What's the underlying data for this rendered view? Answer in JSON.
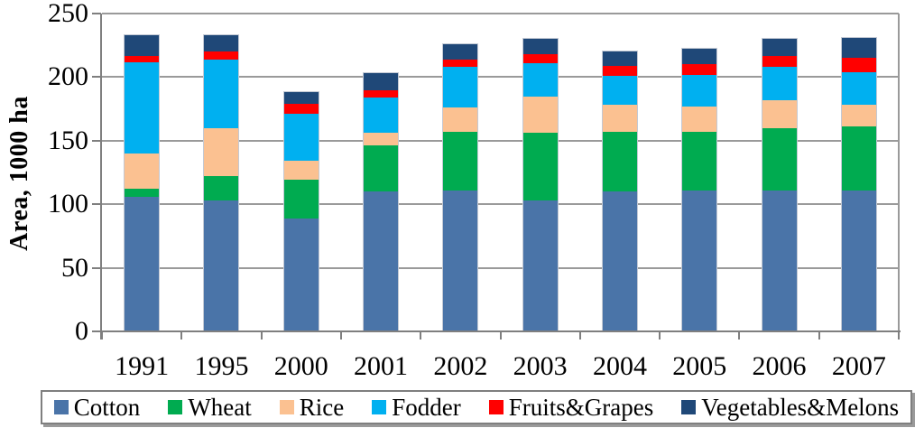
{
  "chart_data": {
    "type": "bar",
    "stacked": true,
    "title": "",
    "xlabel": "",
    "ylabel": "Area, 1000 ha",
    "ylim": [
      0,
      250
    ],
    "yticks": [
      0,
      50,
      100,
      150,
      200,
      250
    ],
    "grid": "horizontal",
    "grid_color": "#9a9a9a",
    "legend_position": "bottom",
    "categories": [
      "1991",
      "1995",
      "2000",
      "2001",
      "2002",
      "2003",
      "2004",
      "2005",
      "2006",
      "2007"
    ],
    "series": [
      {
        "name": "Cotton",
        "color": "#4A74A8",
        "values": [
          106,
          103,
          89,
          110,
          111,
          103,
          110,
          111,
          111,
          111
        ]
      },
      {
        "name": "Wheat",
        "color": "#00AB50",
        "values": [
          6,
          19,
          30,
          36,
          46,
          53,
          47,
          46,
          49,
          50
        ]
      },
      {
        "name": "Rice",
        "color": "#FBC191",
        "values": [
          28,
          38,
          15,
          10,
          19,
          29,
          21,
          20,
          22,
          17
        ]
      },
      {
        "name": "Fodder",
        "color": "#00B0F0",
        "values": [
          72,
          54,
          37,
          28,
          32,
          26,
          23,
          25,
          26,
          26
        ]
      },
      {
        "name": "Fruits&Grapes",
        "color": "#FF0000",
        "values": [
          5,
          6,
          8,
          6,
          6,
          7,
          8,
          8,
          9,
          11
        ]
      },
      {
        "name": "Vegetables&Melons",
        "color": "#1F4878",
        "values": [
          16,
          13,
          9,
          13,
          12,
          12,
          11,
          12,
          13,
          16
        ]
      }
    ]
  }
}
